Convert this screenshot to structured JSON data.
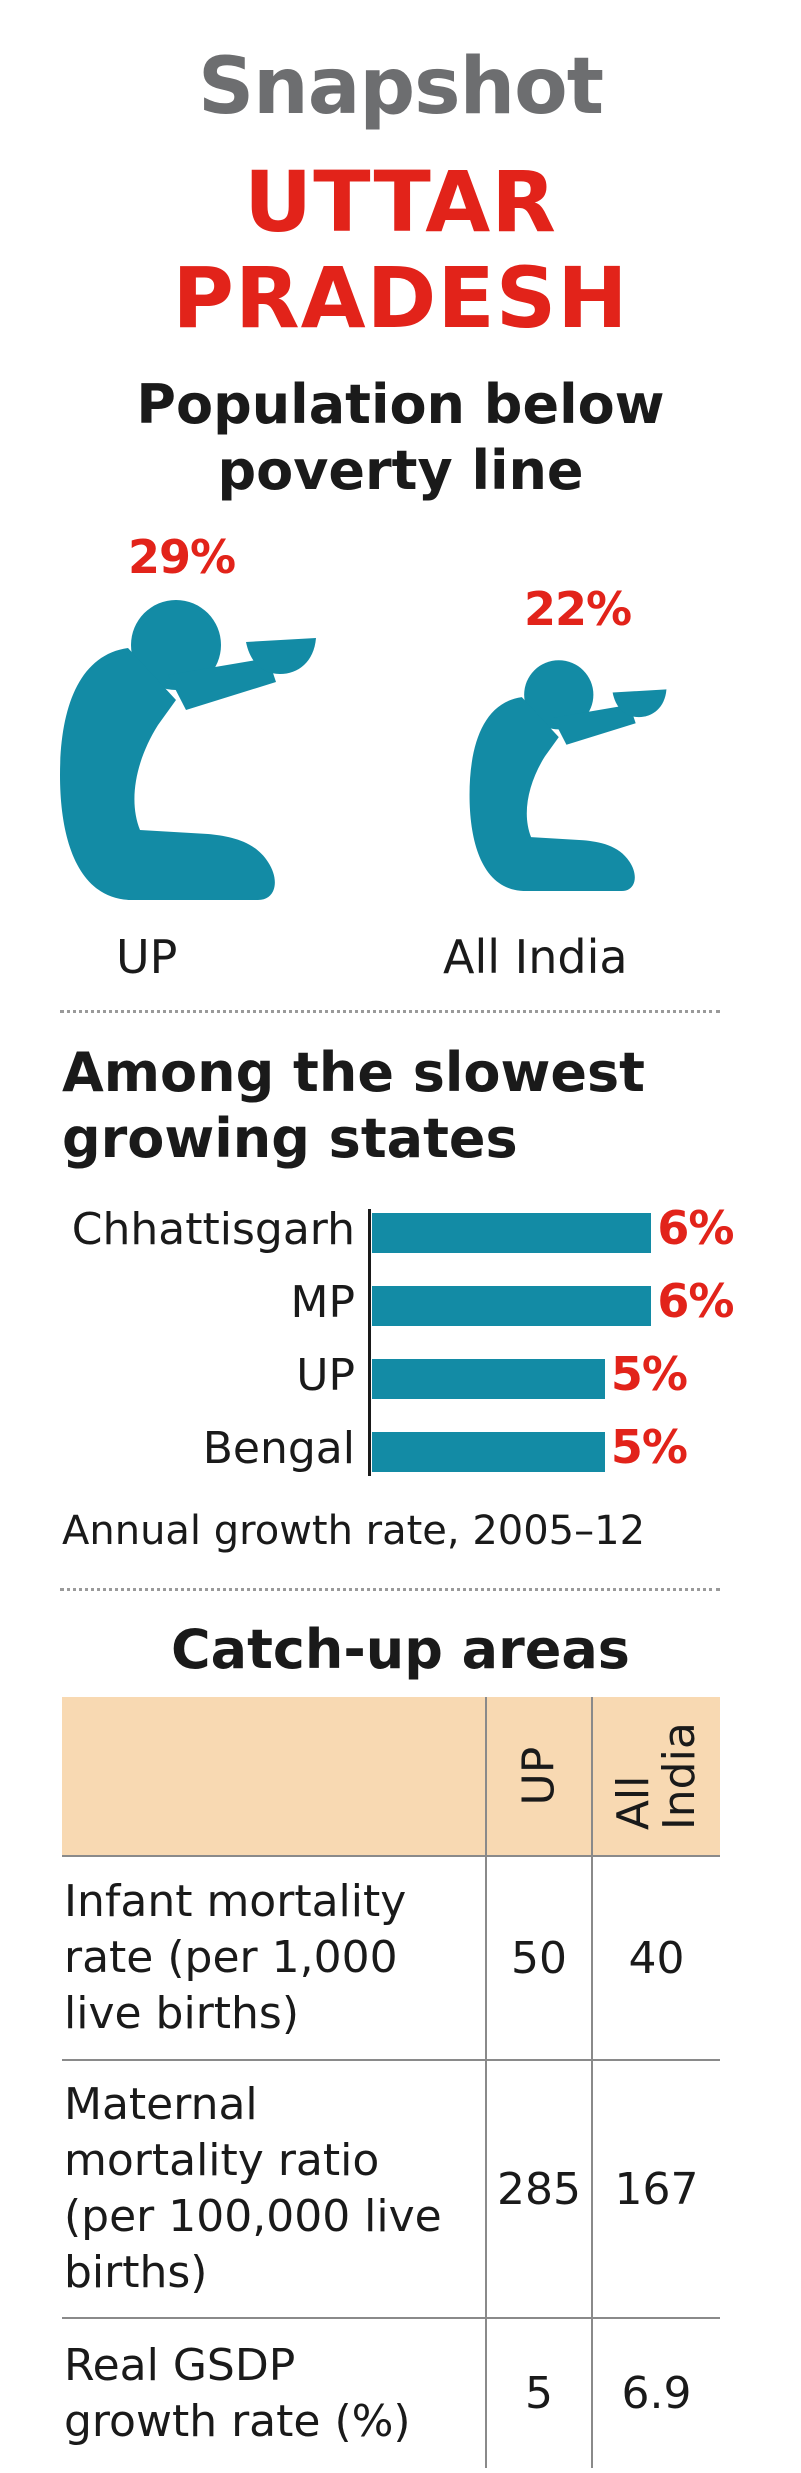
{
  "header": {
    "kicker": "Snapshot",
    "state_line1": "UTTAR",
    "state_line2": "PRADESH"
  },
  "poverty": {
    "title_line1": "Population below",
    "title_line2": "poverty line",
    "figure_color": "#138ba5",
    "items": [
      {
        "label": "UP",
        "value_label": "29%"
      },
      {
        "label": "All India",
        "value_label": "22%"
      }
    ]
  },
  "growth": {
    "title_line1": "Among the slowest",
    "title_line2": "growing states",
    "note": "Annual growth rate, 2005–12",
    "bar_color": "#138ba5",
    "value_color": "#e2231a"
  },
  "chart_data": [
    {
      "type": "bar",
      "title": "Population below poverty line",
      "categories": [
        "UP",
        "All India"
      ],
      "values": [
        29,
        22
      ],
      "value_labels": [
        "29%",
        "22%"
      ],
      "unit": "%"
    },
    {
      "type": "bar",
      "orientation": "horizontal",
      "title": "Among the slowest growing states",
      "categories": [
        "Chhattisgarh",
        "MP",
        "UP",
        "Bengal"
      ],
      "values": [
        6,
        6,
        5,
        5
      ],
      "value_labels": [
        "6%",
        "6%",
        "5%",
        "5%"
      ],
      "unit": "%",
      "xlim": [
        0,
        6.4
      ],
      "xlabel": "Annual growth rate, 2005–12"
    },
    {
      "type": "table",
      "title": "Catch-up areas",
      "columns": [
        "",
        "UP",
        "All India"
      ],
      "rows": [
        [
          "Infant mortality rate (per 1,000 live births)",
          "50",
          "40"
        ],
        [
          "Maternal mortality ratio (per 100,000 live births)",
          "285",
          "167"
        ],
        [
          "Real GSDP growth rate (%)",
          "5",
          "6.9"
        ]
      ]
    }
  ],
  "catchup": {
    "title": "Catch-up areas",
    "col_up": "UP",
    "col_india_line1": "All",
    "col_india_line2": "India",
    "header_color": "#f8d9b2",
    "rows": [
      {
        "l1": "Infant mortality",
        "l2": "rate (per 1,000",
        "l3": "live births)",
        "l4": "",
        "up": "50",
        "india": "40"
      },
      {
        "l1": "Maternal",
        "l2": "mortality ratio",
        "l3": "(per 100,000 live",
        "l4": "births)",
        "up": "285",
        "india": "167"
      },
      {
        "l1": "Real GSDP",
        "l2": "growth rate (%)",
        "l3": "",
        "l4": "",
        "up": "5",
        "india": "6.9"
      }
    ]
  }
}
